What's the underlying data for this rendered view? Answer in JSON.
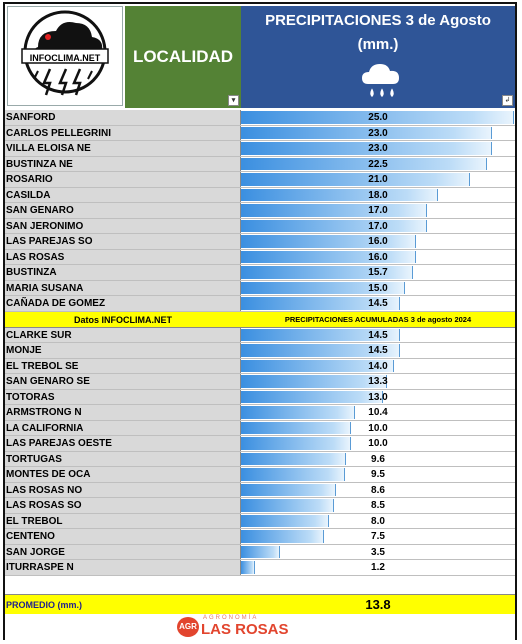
{
  "header": {
    "logo_text": "INFOCLIMA.NET",
    "location_label": "LOCALIDAD",
    "title_line1": "PRECIPITACIONES 3 de Agosto",
    "title_line2": "(mm.)",
    "weather_icon": "rain-cloud-icon"
  },
  "bands": {
    "source_label": "Datos INFOCLIMA.NET",
    "accumulated_label": "PRECIPITACIONES ACUMULADAS 3 de agosto 2024"
  },
  "summary": {
    "label": "PROMEDIO (mm.)",
    "value": "13.8"
  },
  "footer": {
    "brand_badge": "AGR",
    "brand_small": "AGRONOMÍA",
    "brand_name": "LAS ROSAS"
  },
  "colors": {
    "location_bg": "#548235",
    "title_bg": "#2f5597",
    "band_bg": "#ffff00",
    "bar_start": "#3b8fe0",
    "bar_end": "#e9f4fd",
    "brand": "#e2452e"
  },
  "chart_data": {
    "type": "bar",
    "orientation": "horizontal",
    "title": "PRECIPITACIONES 3 de Agosto (mm.)",
    "categories": [
      "SANFORD",
      "CARLOS PELLEGRINI",
      "VILLA ELOISA NE",
      "BUSTINZA NE",
      "ROSARIO",
      "CASILDA",
      "SAN GENARO",
      "SAN JERONIMO",
      "LAS PAREJAS SO",
      "LAS ROSAS",
      "BUSTINZA",
      "MARIA SUSANA",
      "CAÑADA DE GOMEZ",
      "CLARKE SUR",
      "MONJE",
      "EL TREBOL SE",
      "SAN GENARO SE",
      "TOTORAS",
      "ARMSTRONG N",
      "LA CALIFORNIA",
      "LAS PAREJAS OESTE",
      "TORTUGAS",
      "MONTES DE OCA",
      "LAS ROSAS NO",
      "LAS ROSAS SO",
      "EL TREBOL",
      "CENTENO",
      "SAN JORGE",
      "ITURRASPE N"
    ],
    "values": [
      25.0,
      23.0,
      23.0,
      22.5,
      21.0,
      18.0,
      17.0,
      17.0,
      16.0,
      16.0,
      15.7,
      15.0,
      14.5,
      14.5,
      14.5,
      14.0,
      13.3,
      13.0,
      10.4,
      10.0,
      10.0,
      9.6,
      9.5,
      8.6,
      8.5,
      8.0,
      7.5,
      3.5,
      1.2
    ],
    "labels": [
      "25.0",
      "23.0",
      "23.0",
      "22.5",
      "21.0",
      "18.0",
      "17.0",
      "17.0",
      "16.0",
      "16.0",
      "15.7",
      "15.0",
      "14.5",
      "14.5",
      "14.5",
      "14.0",
      "13.3",
      "13.0",
      "10.4",
      "10.0",
      "10.0",
      "9.6",
      "9.5",
      "8.6",
      "8.5",
      "8.0",
      "7.5",
      "3.5",
      "1.2"
    ],
    "xlim": [
      0,
      25
    ],
    "grid": false
  }
}
